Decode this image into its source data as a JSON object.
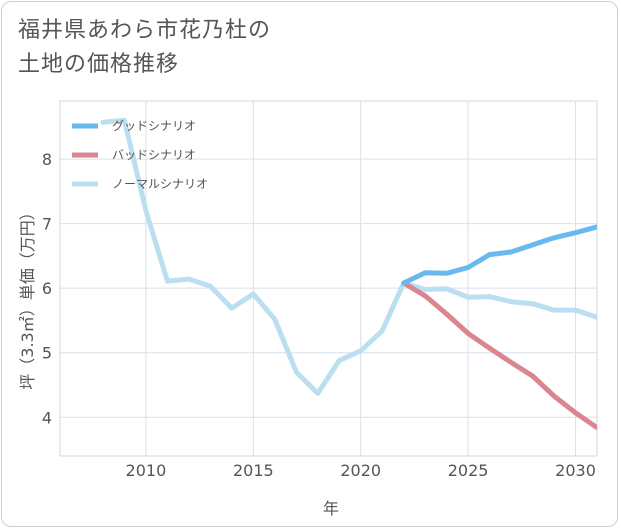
{
  "chart_data": {
    "type": "line",
    "title": "福井県あわら市花乃杜の\n土地の価格推移",
    "xlabel": "年",
    "ylabel": "坪（3.3㎡）単価（万円）",
    "xlim": [
      2006,
      2031
    ],
    "ylim": [
      3.4,
      8.9
    ],
    "x_ticks": [
      2010,
      2015,
      2020,
      2025,
      2030
    ],
    "y_ticks": [
      4,
      5,
      6,
      7,
      8
    ],
    "grid": true,
    "legend_position": "top-left",
    "series": [
      {
        "name": "グッドシナリオ",
        "color": "#6ab9ee",
        "x": [
          2022,
          2023,
          2024,
          2025,
          2026,
          2027,
          2028,
          2029,
          2030,
          2031
        ],
        "values": [
          6.08,
          6.24,
          6.23,
          6.32,
          6.52,
          6.56,
          6.67,
          6.78,
          6.86,
          6.95
        ]
      },
      {
        "name": "バッドシナリオ",
        "color": "#db8590",
        "x": [
          2022,
          2023,
          2024,
          2025,
          2026,
          2027,
          2028,
          2029,
          2030,
          2031
        ],
        "values": [
          6.08,
          5.88,
          5.6,
          5.3,
          5.07,
          4.85,
          4.64,
          4.33,
          4.07,
          3.84
        ]
      },
      {
        "name": "ノーマルシナリオ",
        "color": "#b9dff0",
        "x": [
          2008,
          2009,
          2010,
          2011,
          2012,
          2013,
          2014,
          2015,
          2016,
          2017,
          2018,
          2019,
          2020,
          2021,
          2022,
          2023,
          2024,
          2025,
          2026,
          2027,
          2028,
          2029,
          2030,
          2031
        ],
        "values": [
          8.57,
          8.6,
          7.2,
          6.11,
          6.14,
          6.03,
          5.69,
          5.91,
          5.52,
          4.7,
          4.37,
          4.88,
          5.03,
          5.34,
          6.08,
          5.98,
          5.99,
          5.86,
          5.87,
          5.79,
          5.76,
          5.66,
          5.66,
          5.55
        ]
      }
    ]
  }
}
